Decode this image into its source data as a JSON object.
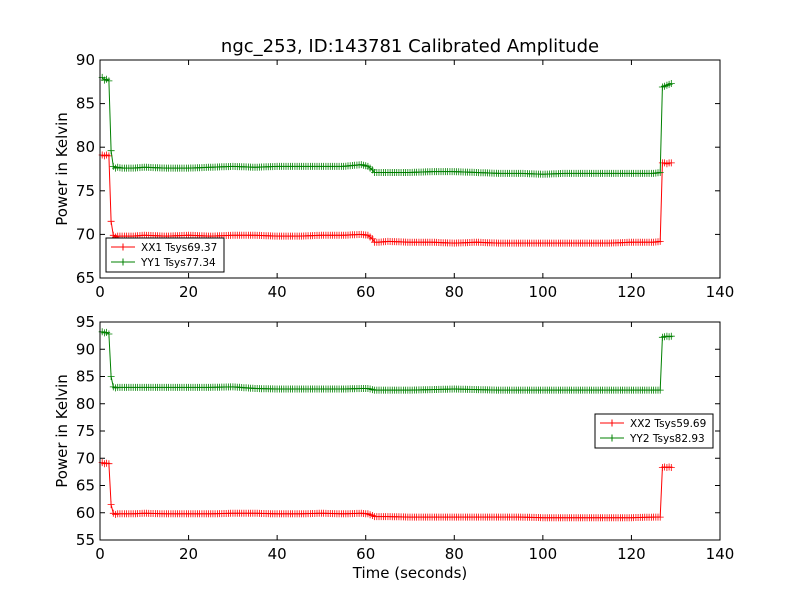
{
  "colors": {
    "red": "#ff0000",
    "green": "#008000"
  },
  "chart_data": [
    {
      "type": "line",
      "title": "ngc_253, ID:143781 Calibrated Amplitude",
      "xlabel": "",
      "ylabel": "Power in Kelvin",
      "xlim": [
        0,
        140
      ],
      "ylim": [
        65,
        90
      ],
      "xticks": [
        0,
        20,
        40,
        60,
        80,
        100,
        120,
        140
      ],
      "yticks": [
        65,
        70,
        75,
        80,
        85,
        90
      ],
      "legend_position": "lower-left",
      "series": [
        {
          "name": "XX1 Tsys69.37",
          "color": "red",
          "x": [
            0.5,
            1,
            1.5,
            2,
            2.5,
            3,
            3.5,
            4,
            5,
            7.5,
            10,
            15,
            20,
            25,
            30,
            35,
            40,
            45,
            50,
            55,
            59,
            60.5,
            61.5,
            62,
            63,
            65,
            70,
            75,
            80,
            85,
            90,
            95,
            100,
            105,
            110,
            115,
            120,
            125,
            126.5,
            127,
            127.5,
            128,
            128.5,
            129
          ],
          "y": [
            79.1,
            79.0,
            79.1,
            79.0,
            71.5,
            69.9,
            69.7,
            69.8,
            69.8,
            69.8,
            69.9,
            69.8,
            69.9,
            69.8,
            69.9,
            69.9,
            69.8,
            69.8,
            69.9,
            69.9,
            70.0,
            69.9,
            69.5,
            69.1,
            69.1,
            69.2,
            69.1,
            69.1,
            69.0,
            69.1,
            69.0,
            69.0,
            69.0,
            69.0,
            69.0,
            69.0,
            69.1,
            69.1,
            69.2,
            78.2,
            78.2,
            78.1,
            78.2,
            78.2
          ]
        },
        {
          "name": "YY1 Tsys77.34",
          "color": "green",
          "x": [
            0.5,
            1,
            1.5,
            2,
            2.5,
            3,
            3.5,
            4,
            5,
            7.5,
            10,
            15,
            20,
            25,
            30,
            35,
            40,
            45,
            50,
            55,
            59,
            60.5,
            61.5,
            62,
            63,
            65,
            70,
            75,
            80,
            85,
            90,
            95,
            100,
            105,
            110,
            115,
            120,
            125,
            126.5,
            127,
            127.5,
            128,
            128.5,
            129
          ],
          "y": [
            88.0,
            87.7,
            87.8,
            87.6,
            79.6,
            77.8,
            77.6,
            77.7,
            77.6,
            77.6,
            77.7,
            77.6,
            77.6,
            77.7,
            77.8,
            77.7,
            77.8,
            77.8,
            77.8,
            77.8,
            78.0,
            77.8,
            77.4,
            77.1,
            77.1,
            77.1,
            77.1,
            77.2,
            77.2,
            77.1,
            77.0,
            77.0,
            76.9,
            77.0,
            77.0,
            77.0,
            77.0,
            77.0,
            77.1,
            86.9,
            87.0,
            87.1,
            87.2,
            87.3
          ]
        }
      ]
    },
    {
      "type": "line",
      "title": "",
      "xlabel": "Time (seconds)",
      "ylabel": "Power in Kelvin",
      "xlim": [
        0,
        140
      ],
      "ylim": [
        55,
        95
      ],
      "xticks": [
        0,
        20,
        40,
        60,
        80,
        100,
        120,
        140
      ],
      "yticks": [
        55,
        60,
        65,
        70,
        75,
        80,
        85,
        90,
        95
      ],
      "legend_position": "center-right",
      "series": [
        {
          "name": "XX2 Tsys59.69",
          "color": "red",
          "x": [
            0.5,
            1,
            1.5,
            2,
            2.5,
            3,
            3.5,
            4,
            5,
            7.5,
            10,
            15,
            20,
            25,
            30,
            35,
            40,
            45,
            50,
            55,
            59,
            60.5,
            61.5,
            62,
            63,
            65,
            70,
            75,
            80,
            85,
            90,
            95,
            100,
            105,
            110,
            115,
            120,
            125,
            126.5,
            127,
            127.5,
            128,
            128.5,
            129
          ],
          "y": [
            69.2,
            69.0,
            69.1,
            69.0,
            61.5,
            59.9,
            59.7,
            59.8,
            59.8,
            59.8,
            59.9,
            59.8,
            59.8,
            59.8,
            59.9,
            59.9,
            59.8,
            59.8,
            59.9,
            59.8,
            59.9,
            59.8,
            59.5,
            59.3,
            59.3,
            59.3,
            59.2,
            59.2,
            59.2,
            59.2,
            59.2,
            59.2,
            59.1,
            59.1,
            59.1,
            59.1,
            59.1,
            59.2,
            59.2,
            68.3,
            68.4,
            68.3,
            68.4,
            68.3
          ]
        },
        {
          "name": "YY2 Tsys82.93",
          "color": "green",
          "x": [
            0.5,
            1,
            1.5,
            2,
            2.5,
            3,
            3.5,
            4,
            5,
            7.5,
            10,
            15,
            20,
            25,
            30,
            35,
            40,
            45,
            50,
            55,
            59,
            60.5,
            61.5,
            62,
            63,
            65,
            70,
            75,
            80,
            85,
            90,
            95,
            100,
            105,
            110,
            115,
            120,
            125,
            126.5,
            127,
            127.5,
            128,
            128.5,
            129
          ],
          "y": [
            93.2,
            93.0,
            93.1,
            92.8,
            85.0,
            83.1,
            82.9,
            83.0,
            83.0,
            83.0,
            83.0,
            83.0,
            83.0,
            83.0,
            83.1,
            82.8,
            82.7,
            82.7,
            82.7,
            82.7,
            82.8,
            82.8,
            82.6,
            82.5,
            82.5,
            82.5,
            82.5,
            82.6,
            82.7,
            82.6,
            82.5,
            82.5,
            82.5,
            82.5,
            82.5,
            82.5,
            82.5,
            82.5,
            82.5,
            92.2,
            92.3,
            92.4,
            92.3,
            92.4
          ]
        }
      ]
    }
  ]
}
